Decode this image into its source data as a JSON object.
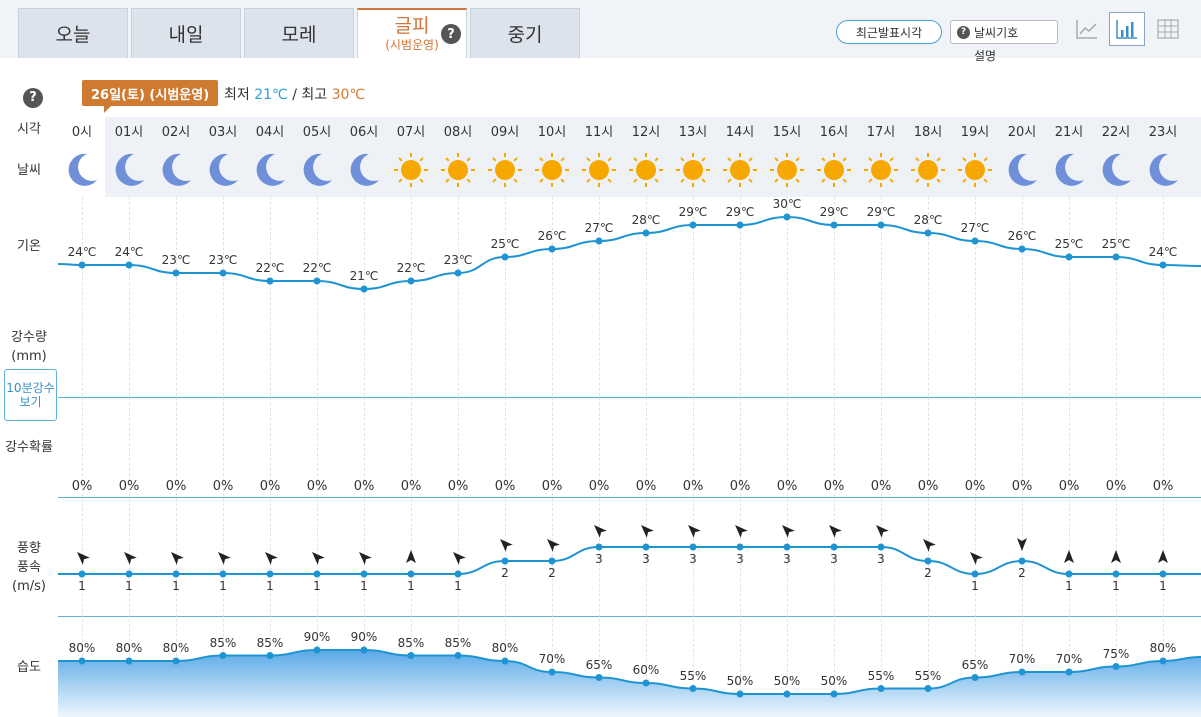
{
  "tabs": [
    {
      "label": "오늘"
    },
    {
      "label": "내일"
    },
    {
      "label": "모레"
    },
    {
      "label": "글피",
      "sub": "(시범운영)"
    },
    {
      "label": "중기"
    }
  ],
  "toolbar": {
    "recent_label": "최근발표시각",
    "symbols_label": "날씨기호",
    "symbols_sub": "설명",
    "view_icons": [
      "line-chart-icon",
      "bar-chart-icon",
      "table-icon"
    ]
  },
  "date_badge": "26일(토) (시범운영)",
  "minmax": {
    "min_label": "최저",
    "min": "21℃",
    "sep": "/",
    "max_label": "최고",
    "max": "30℃"
  },
  "row_labels": {
    "time": "시각",
    "weather": "날씨",
    "temp": "기온",
    "rain1": "강수량",
    "rain2": "(mm)",
    "rainbtn": "10분강수보기",
    "prob": "강수확률",
    "wind1": "풍향",
    "wind2": "풍속",
    "wind3": "(m/s)",
    "humid": "습도"
  },
  "colors": {
    "accent": "#cf7a31",
    "line": "#1f94d2",
    "min": "#2a9fd8",
    "max": "#cf7a31",
    "sun": "#f6a800",
    "moon": "#6f8fd8"
  },
  "chart_data": {
    "type": "line",
    "hours": [
      "0시",
      "01시",
      "02시",
      "03시",
      "04시",
      "05시",
      "06시",
      "07시",
      "08시",
      "09시",
      "10시",
      "11시",
      "12시",
      "13시",
      "14시",
      "15시",
      "16시",
      "17시",
      "18시",
      "19시",
      "20시",
      "21시",
      "22시",
      "23시"
    ],
    "weather": [
      "moon",
      "moon",
      "moon",
      "moon",
      "moon",
      "moon",
      "moon",
      "sun",
      "sun",
      "sun",
      "sun",
      "sun",
      "sun",
      "sun",
      "sun",
      "sun",
      "sun",
      "sun",
      "sun",
      "sun",
      "moon",
      "moon",
      "moon",
      "moon"
    ],
    "temp": [
      24,
      24,
      23,
      23,
      22,
      22,
      21,
      22,
      23,
      25,
      26,
      27,
      28,
      29,
      29,
      30,
      29,
      29,
      28,
      27,
      26,
      25,
      25,
      24
    ],
    "temp_unit": "℃",
    "rain_prob": [
      0,
      0,
      0,
      0,
      0,
      0,
      0,
      0,
      0,
      0,
      0,
      0,
      0,
      0,
      0,
      0,
      0,
      0,
      0,
      0,
      0,
      0,
      0,
      0
    ],
    "prob_unit": "%",
    "wind_speed": [
      1,
      1,
      1,
      1,
      1,
      1,
      1,
      1,
      1,
      2,
      2,
      3,
      3,
      3,
      3,
      3,
      3,
      3,
      2,
      1,
      2,
      1,
      1,
      1
    ],
    "wind_dir": [
      "NW",
      "NW",
      "NW",
      "NW",
      "NW",
      "NW",
      "NW",
      "N",
      "NW",
      "NW",
      "NW",
      "NW",
      "NW",
      "NW",
      "NW",
      "NW",
      "NW",
      "NW",
      "NW",
      "NW",
      "S",
      "N",
      "N",
      "N"
    ],
    "humidity": [
      80,
      80,
      80,
      85,
      85,
      90,
      90,
      85,
      85,
      80,
      70,
      65,
      60,
      55,
      50,
      50,
      50,
      55,
      55,
      65,
      70,
      70,
      75,
      80
    ],
    "humidity_unit": "%"
  }
}
